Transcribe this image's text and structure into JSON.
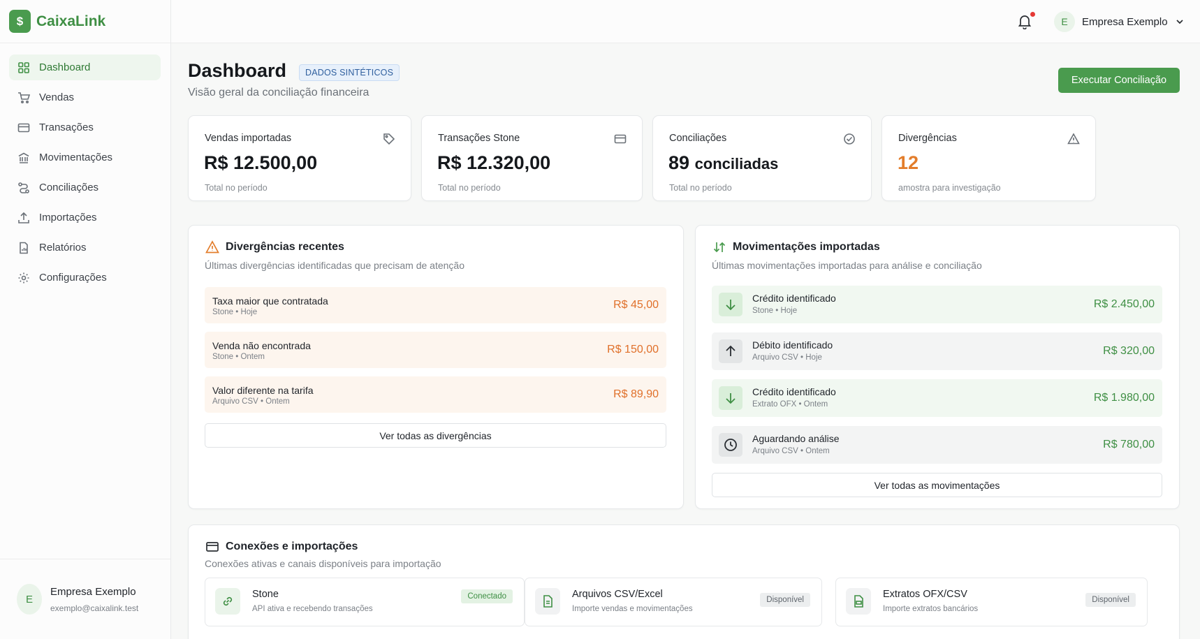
{
  "brand": {
    "logo_symbol": "$",
    "name": "CaixaLink",
    "color": "#4a9b4e"
  },
  "sidebar": {
    "items": [
      {
        "label": "Dashboard",
        "icon": "grid-icon",
        "active": true
      },
      {
        "label": "Vendas",
        "icon": "cart-icon"
      },
      {
        "label": "Transações",
        "icon": "card-icon"
      },
      {
        "label": "Movimentações",
        "icon": "bank-icon"
      },
      {
        "label": "Conciliações",
        "icon": "route-icon"
      },
      {
        "label": "Importações",
        "icon": "upload-icon"
      },
      {
        "label": "Relatórios",
        "icon": "report-icon"
      },
      {
        "label": "Configurações",
        "icon": "gear-icon"
      }
    ],
    "user": {
      "initial": "E",
      "name": "Empresa Exemplo",
      "email": "exemplo@caixalink.test"
    }
  },
  "topbar": {
    "user_initial": "E",
    "user_name": "Empresa Exemplo",
    "has_notification": true
  },
  "header": {
    "title": "Dashboard",
    "badge": "DADOS SINTÉTICOS",
    "subtitle": "Visão geral da conciliação financeira",
    "action_label": "Executar Conciliação"
  },
  "stats": [
    {
      "label": "Vendas importadas",
      "value": "R$ 12.500,00",
      "foot": "Total no período",
      "icon": "tag-icon"
    },
    {
      "label": "Transações Stone",
      "value": "R$ 12.320,00",
      "foot": "Total no período",
      "icon": "card-icon"
    },
    {
      "label": "Conciliações",
      "value_num": "89",
      "value_unit": "conciliadas",
      "foot": "Total no período",
      "icon": "check-circle-icon"
    },
    {
      "label": "Divergências",
      "value": "12",
      "foot": "amostra para investigação",
      "icon": "warning-icon"
    }
  ],
  "divergences": {
    "title": "Divergências recentes",
    "subtitle": "Últimas divergências identificadas que precisam de atenção",
    "items": [
      {
        "title": "Taxa maior que contratada",
        "meta": "Stone • Hoje",
        "value": "R$ 45,00"
      },
      {
        "title": "Venda não encontrada",
        "meta": "Stone • Ontem",
        "value": "R$ 150,00"
      },
      {
        "title": "Valor diferente na tarifa",
        "meta": "Arquivo CSV • Ontem",
        "value": "R$ 89,90"
      }
    ],
    "button": "Ver todas as divergências"
  },
  "movements": {
    "title": "Movimentações importadas",
    "subtitle": "Últimas movimentações importadas para análise e conciliação",
    "items": [
      {
        "title": "Crédito identificado",
        "meta": "Stone • Hoje",
        "value": "R$ 2.450,00",
        "icon": "arrow-down-icon"
      },
      {
        "title": "Débito identificado",
        "meta": "Arquivo CSV • Hoje",
        "value": "R$ 320,00",
        "icon": "arrow-up-icon"
      },
      {
        "title": "Crédito identificado",
        "meta": "Extrato OFX • Ontem",
        "value": "R$ 1.980,00",
        "icon": "arrow-down-icon"
      },
      {
        "title": "Aguardando análise",
        "meta": "Arquivo CSV • Ontem",
        "value": "R$ 780,00",
        "icon": "clock-icon"
      }
    ],
    "button": "Ver todas as movimentações"
  },
  "connections": {
    "title": "Conexões e importações",
    "subtitle": "Conexões ativas e canais disponíveis para importação",
    "items": [
      {
        "title": "Stone",
        "desc": "API ativa e recebendo transações",
        "status": "Conectado",
        "icon": "link-icon"
      },
      {
        "title": "Arquivos CSV/Excel",
        "desc": "Importe vendas e movimentações",
        "status": "Disponível",
        "icon": "file-icon"
      },
      {
        "title": "Extratos OFX/CSV",
        "desc": "Importe extratos bancários",
        "status": "Disponível",
        "icon": "ofx-file-icon"
      }
    ]
  },
  "colors": {
    "accent": "#4a9b4e",
    "warning": "#e37d2b",
    "positive": "#3f8f44"
  }
}
